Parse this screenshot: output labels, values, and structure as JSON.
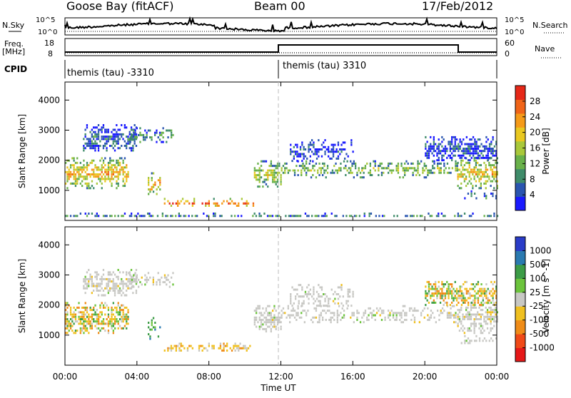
{
  "header": {
    "station": "Goose Bay (fitACF)",
    "beam": "Beam 00",
    "date": "17/Feb/2012"
  },
  "top_panels": {
    "nsky_label": "N.Sky",
    "nsky_ticks": [
      "10^5",
      "10^0"
    ],
    "nsearch_label": "N.Search",
    "nsearch_ticks": [
      "10^5",
      "10^0"
    ],
    "freq_label": "Freq.",
    "freq_unit": "[MHz]",
    "freq_ticks": [
      "18",
      "8"
    ],
    "nave_label": "Nave",
    "nave_ticks": [
      "60",
      "0"
    ],
    "cpid_label": "CPID",
    "cpid_segments": [
      "themis (tau) -3310",
      "themis (tau) 3310"
    ]
  },
  "chart_data": [
    {
      "type": "heatmap",
      "title": "",
      "ylabel": "Slant Range [km]",
      "yticks": [
        "1000",
        "2000",
        "3000",
        "4000"
      ],
      "ylim": [
        0,
        4600
      ],
      "xlim": [
        0,
        24
      ],
      "colorbar_label": "Power [dB]",
      "colorbar_ticks": [
        "28",
        "24",
        "20",
        "16",
        "12",
        "8",
        "4"
      ],
      "colorbar_colors": [
        "#1a1aff",
        "#2a55b0",
        "#3f8c6a",
        "#69b14a",
        "#a9c83a",
        "#e9c820",
        "#f59a18",
        "#f06418",
        "#e62818"
      ],
      "regions": [
        {
          "t0": 0.0,
          "t1": 3.5,
          "r0": 1100,
          "r1": 2100,
          "level": 0.55
        },
        {
          "t0": 1.0,
          "t1": 4.0,
          "r0": 2300,
          "r1": 3200,
          "level": 0.15
        },
        {
          "t0": 3.5,
          "t1": 6.0,
          "r0": 2600,
          "r1": 3100,
          "level": 0.25
        },
        {
          "t0": 4.6,
          "t1": 5.3,
          "r0": 900,
          "r1": 1600,
          "level": 0.6
        },
        {
          "t0": 5.5,
          "t1": 10.5,
          "r0": 450,
          "r1": 750,
          "level": 0.65
        },
        {
          "t0": 10.5,
          "t1": 12.0,
          "r0": 1100,
          "r1": 2000,
          "level": 0.4
        },
        {
          "t0": 12.0,
          "t1": 21.8,
          "r0": 1450,
          "r1": 2000,
          "level": 0.35
        },
        {
          "t0": 12.5,
          "t1": 16.0,
          "r0": 2000,
          "r1": 2700,
          "level": 0.1
        },
        {
          "t0": 21.8,
          "t1": 24.0,
          "r0": 1100,
          "r1": 2100,
          "level": 0.5
        },
        {
          "t0": 20.0,
          "t1": 24.0,
          "r0": 2000,
          "r1": 2800,
          "level": 0.1
        },
        {
          "t0": 22.0,
          "t1": 24.0,
          "r0": 700,
          "r1": 1000,
          "level": 0.2
        },
        {
          "t0": 0.0,
          "t1": 24.0,
          "r0": 120,
          "r1": 260,
          "level": 0.2
        }
      ]
    },
    {
      "type": "heatmap",
      "title": "",
      "ylabel": "Slant Range [km]",
      "xlabel": "Time UT",
      "yticks": [
        "1000",
        "2000",
        "3000",
        "4000"
      ],
      "xticks": [
        "00:00",
        "04:00",
        "08:00",
        "12:00",
        "16:00",
        "20:00",
        "00:00"
      ],
      "ylim": [
        0,
        4600
      ],
      "xlim": [
        0,
        24
      ],
      "colorbar_label": "Velocity [m s^-1]",
      "colorbar_ticks": [
        "1000",
        "500",
        "100",
        "25",
        "-25",
        "-100",
        "-500",
        "-1000"
      ],
      "colorbar_colors": [
        "#2a3cc8",
        "#2a7ab0",
        "#3c9c46",
        "#6cc43c",
        "#c8c8c4",
        "#f0c020",
        "#f08c18",
        "#f04a18",
        "#e61818"
      ],
      "regions": [
        {
          "t0": 0.0,
          "t1": 3.5,
          "r0": 1100,
          "r1": 2100,
          "level": "mixed"
        },
        {
          "t0": 1.0,
          "t1": 4.0,
          "r0": 2300,
          "r1": 3200,
          "level": "grey"
        },
        {
          "t0": 3.5,
          "t1": 6.0,
          "r0": 2600,
          "r1": 3100,
          "level": "grey"
        },
        {
          "t0": 4.6,
          "t1": 5.3,
          "r0": 900,
          "r1": 1600,
          "level": "green"
        },
        {
          "t0": 5.5,
          "t1": 10.5,
          "r0": 450,
          "r1": 750,
          "level": "orange"
        },
        {
          "t0": 10.5,
          "t1": 12.0,
          "r0": 1100,
          "r1": 2000,
          "level": "grey"
        },
        {
          "t0": 12.0,
          "t1": 21.8,
          "r0": 1450,
          "r1": 2000,
          "level": "grey"
        },
        {
          "t0": 12.5,
          "t1": 16.0,
          "r0": 2000,
          "r1": 2700,
          "level": "grey"
        },
        {
          "t0": 21.8,
          "t1": 24.0,
          "r0": 1100,
          "r1": 2100,
          "level": "grey"
        },
        {
          "t0": 20.0,
          "t1": 24.0,
          "r0": 2000,
          "r1": 2800,
          "level": "mixed"
        },
        {
          "t0": 22.0,
          "t1": 24.0,
          "r0": 700,
          "r1": 1000,
          "level": "grey"
        }
      ]
    }
  ]
}
